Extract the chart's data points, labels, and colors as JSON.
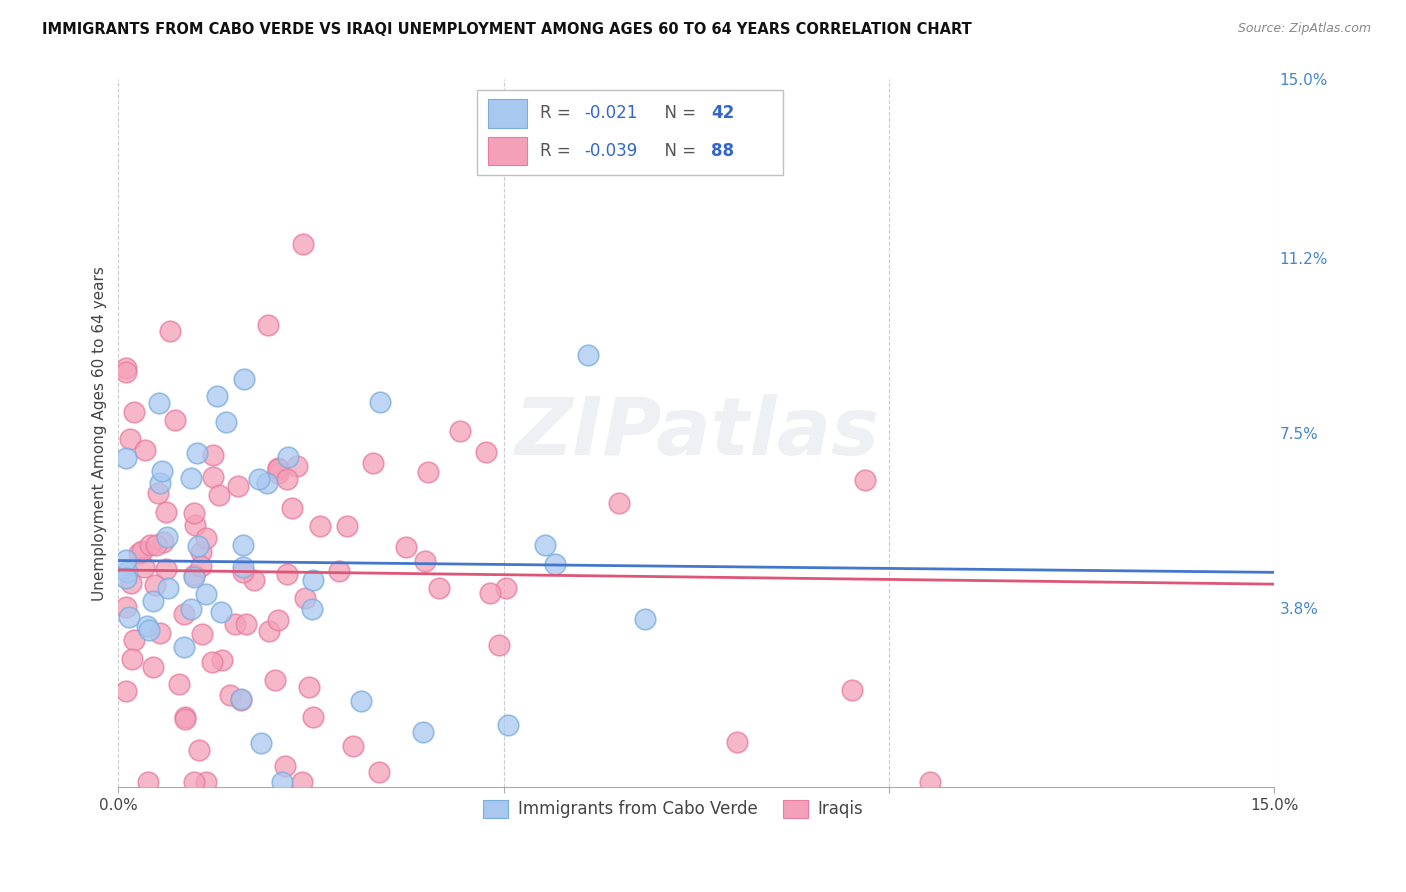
{
  "title": "IMMIGRANTS FROM CABO VERDE VS IRAQI UNEMPLOYMENT AMONG AGES 60 TO 64 YEARS CORRELATION CHART",
  "source": "Source: ZipAtlas.com",
  "ylabel": "Unemployment Among Ages 60 to 64 years",
  "xlim": [
    0.0,
    0.15
  ],
  "ylim": [
    0.0,
    0.15
  ],
  "ytick_vals": [
    0.038,
    0.075,
    0.112,
    0.15
  ],
  "ytick_labels": [
    "3.8%",
    "7.5%",
    "11.2%",
    "15.0%"
  ],
  "xtick_vals": [
    0.0,
    0.05,
    0.1,
    0.15
  ],
  "xtick_labels": [
    "0.0%",
    "",
    "",
    "15.0%"
  ],
  "grid_color": "#cccccc",
  "background_color": "#ffffff",
  "watermark": "ZIPatlas",
  "legend_R1": "-0.021",
  "legend_N1": "42",
  "legend_R2": "-0.039",
  "legend_N2": "88",
  "series1_label": "Immigrants from Cabo Verde",
  "series2_label": "Iraqis",
  "color1": "#a8c8f0",
  "color2": "#f4a0b8",
  "trend_color1": "#4477cc",
  "trend_color2": "#dd5577",
  "marker_edge_color1": "#7aaddd",
  "marker_edge_color2": "#e87ba0",
  "trend1_start_y": 0.048,
  "trend1_end_y": 0.0455,
  "trend2_start_y": 0.046,
  "trend2_end_y": 0.043
}
